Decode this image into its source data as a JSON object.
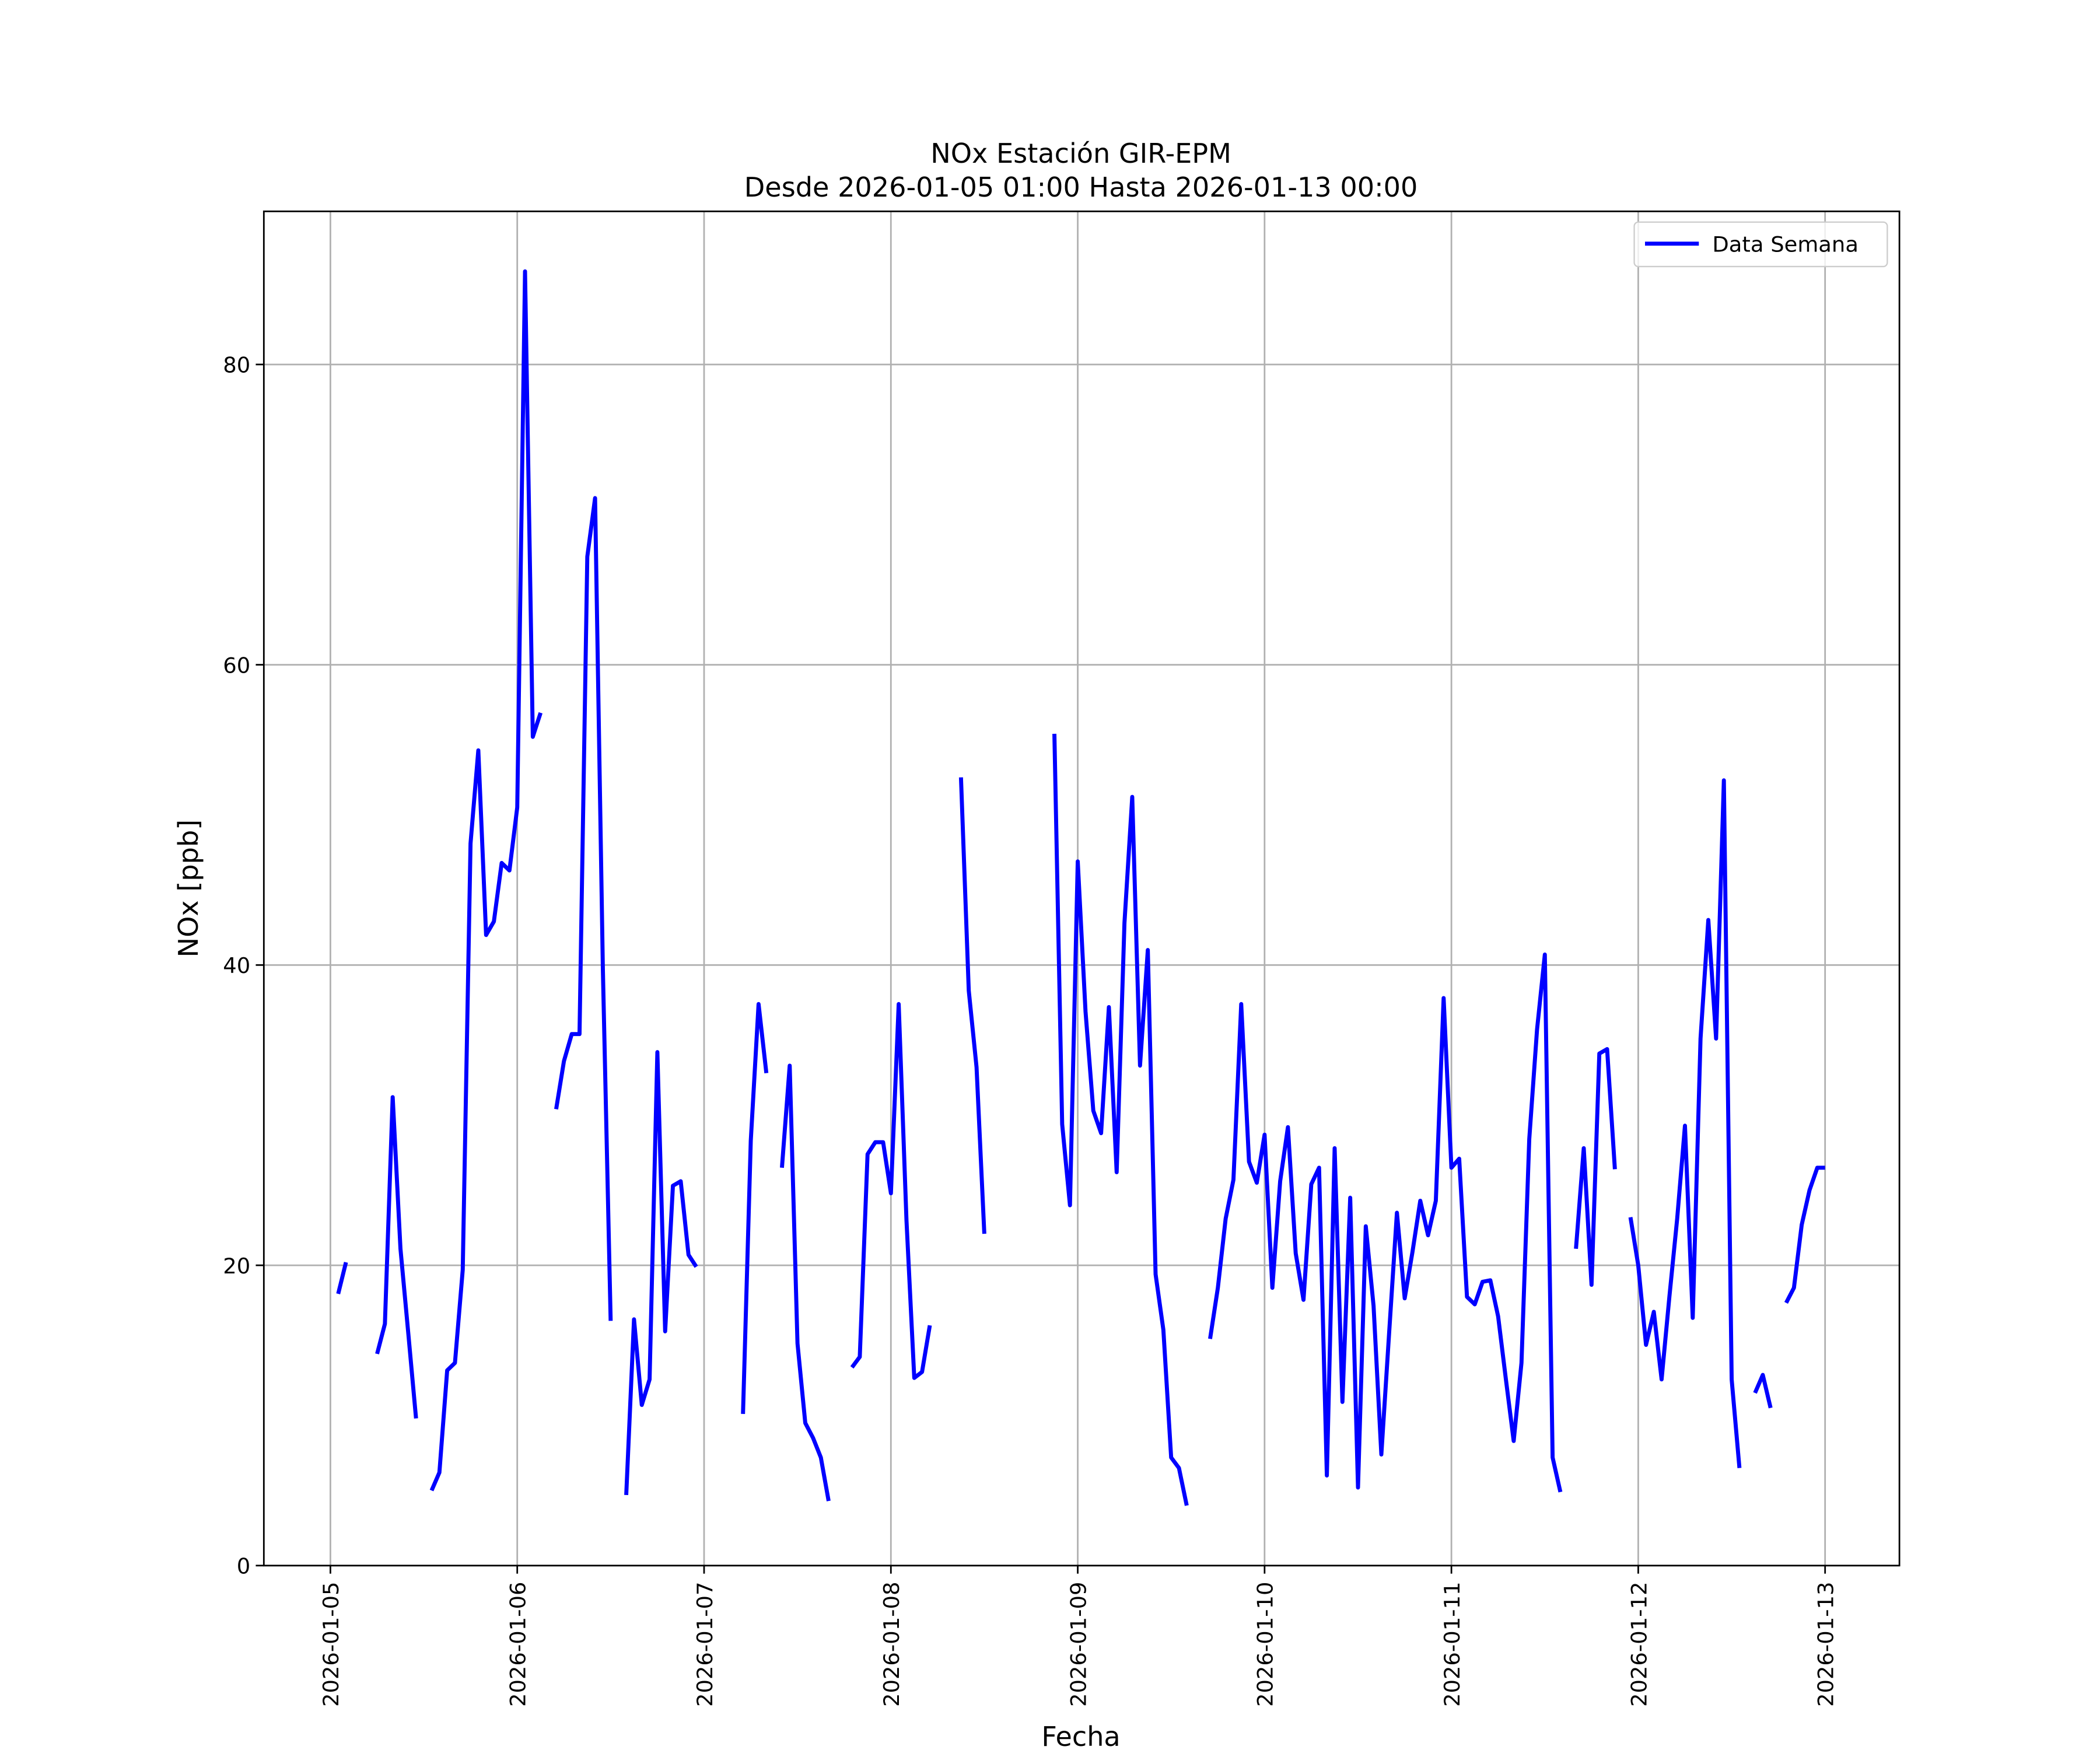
{
  "chart_data": {
    "type": "line",
    "title": "NOx Estación GIR-EPM",
    "subtitle": "Desde 2026-01-05 01:00 Hasta 2026-01-13 00:00",
    "x_label": "Fecha",
    "y_label": "NOx [ppb]",
    "legend": "upper right",
    "grid": true,
    "xlim": [
      "2026-01-04 15:27",
      "2026-01-13 09:33"
    ],
    "ylim": [
      0,
      90.2
    ],
    "yticks": [
      0,
      20,
      40,
      60,
      80
    ],
    "xticks": [
      "2026-01-05",
      "2026-01-06",
      "2026-01-07",
      "2026-01-08",
      "2026-01-09",
      "2026-01-10",
      "2026-01-11",
      "2026-01-12",
      "2026-01-13"
    ],
    "x": [
      "2026-01-05 01:00",
      "2026-01-05 02:00",
      "2026-01-05 03:00",
      "2026-01-05 04:00",
      "2026-01-05 05:00",
      "2026-01-05 06:00",
      "2026-01-05 07:00",
      "2026-01-05 08:00",
      "2026-01-05 09:00",
      "2026-01-05 10:00",
      "2026-01-05 11:00",
      "2026-01-05 12:00",
      "2026-01-05 13:00",
      "2026-01-05 14:00",
      "2026-01-05 15:00",
      "2026-01-05 16:00",
      "2026-01-05 17:00",
      "2026-01-05 18:00",
      "2026-01-05 19:00",
      "2026-01-05 20:00",
      "2026-01-05 21:00",
      "2026-01-05 22:00",
      "2026-01-05 23:00",
      "2026-01-06 00:00",
      "2026-01-06 01:00",
      "2026-01-06 02:00",
      "2026-01-06 03:00",
      "2026-01-06 04:00",
      "2026-01-06 05:00",
      "2026-01-06 06:00",
      "2026-01-06 07:00",
      "2026-01-06 08:00",
      "2026-01-06 09:00",
      "2026-01-06 10:00",
      "2026-01-06 11:00",
      "2026-01-06 12:00",
      "2026-01-06 13:00",
      "2026-01-06 14:00",
      "2026-01-06 15:00",
      "2026-01-06 16:00",
      "2026-01-06 17:00",
      "2026-01-06 18:00",
      "2026-01-06 19:00",
      "2026-01-06 20:00",
      "2026-01-06 21:00",
      "2026-01-06 22:00",
      "2026-01-06 23:00",
      "2026-01-07 00:00",
      "2026-01-07 01:00",
      "2026-01-07 02:00",
      "2026-01-07 03:00",
      "2026-01-07 04:00",
      "2026-01-07 05:00",
      "2026-01-07 06:00",
      "2026-01-07 07:00",
      "2026-01-07 08:00",
      "2026-01-07 09:00",
      "2026-01-07 10:00",
      "2026-01-07 11:00",
      "2026-01-07 12:00",
      "2026-01-07 13:00",
      "2026-01-07 14:00",
      "2026-01-07 15:00",
      "2026-01-07 16:00",
      "2026-01-07 17:00",
      "2026-01-07 18:00",
      "2026-01-07 19:00",
      "2026-01-07 20:00",
      "2026-01-07 21:00",
      "2026-01-07 22:00",
      "2026-01-07 23:00",
      "2026-01-08 00:00",
      "2026-01-08 01:00",
      "2026-01-08 02:00",
      "2026-01-08 03:00",
      "2026-01-08 04:00",
      "2026-01-08 05:00",
      "2026-01-08 06:00",
      "2026-01-08 07:00",
      "2026-01-08 08:00",
      "2026-01-08 09:00",
      "2026-01-08 10:00",
      "2026-01-08 11:00",
      "2026-01-08 12:00",
      "2026-01-08 13:00",
      "2026-01-08 14:00",
      "2026-01-08 15:00",
      "2026-01-08 16:00",
      "2026-01-08 17:00",
      "2026-01-08 18:00",
      "2026-01-08 19:00",
      "2026-01-08 20:00",
      "2026-01-08 21:00",
      "2026-01-08 22:00",
      "2026-01-08 23:00",
      "2026-01-09 00:00",
      "2026-01-09 01:00",
      "2026-01-09 02:00",
      "2026-01-09 03:00",
      "2026-01-09 04:00",
      "2026-01-09 05:00",
      "2026-01-09 06:00",
      "2026-01-09 07:00",
      "2026-01-09 08:00",
      "2026-01-09 09:00",
      "2026-01-09 10:00",
      "2026-01-09 11:00",
      "2026-01-09 12:00",
      "2026-01-09 13:00",
      "2026-01-09 14:00",
      "2026-01-09 15:00",
      "2026-01-09 16:00",
      "2026-01-09 17:00",
      "2026-01-09 18:00",
      "2026-01-09 19:00",
      "2026-01-09 20:00",
      "2026-01-09 21:00",
      "2026-01-09 22:00",
      "2026-01-09 23:00",
      "2026-01-10 00:00",
      "2026-01-10 01:00",
      "2026-01-10 02:00",
      "2026-01-10 03:00",
      "2026-01-10 04:00",
      "2026-01-10 05:00",
      "2026-01-10 06:00",
      "2026-01-10 07:00",
      "2026-01-10 08:00",
      "2026-01-10 09:00",
      "2026-01-10 10:00",
      "2026-01-10 11:00",
      "2026-01-10 12:00",
      "2026-01-10 13:00",
      "2026-01-10 14:00",
      "2026-01-10 15:00",
      "2026-01-10 16:00",
      "2026-01-10 17:00",
      "2026-01-10 18:00",
      "2026-01-10 19:00",
      "2026-01-10 20:00",
      "2026-01-10 21:00",
      "2026-01-10 22:00",
      "2026-01-10 23:00",
      "2026-01-11 00:00",
      "2026-01-11 01:00",
      "2026-01-11 02:00",
      "2026-01-11 03:00",
      "2026-01-11 04:00",
      "2026-01-11 05:00",
      "2026-01-11 06:00",
      "2026-01-11 07:00",
      "2026-01-11 08:00",
      "2026-01-11 09:00",
      "2026-01-11 10:00",
      "2026-01-11 11:00",
      "2026-01-11 12:00",
      "2026-01-11 13:00",
      "2026-01-11 14:00",
      "2026-01-11 15:00",
      "2026-01-11 16:00",
      "2026-01-11 17:00",
      "2026-01-11 18:00",
      "2026-01-11 19:00",
      "2026-01-11 20:00",
      "2026-01-11 21:00",
      "2026-01-11 22:00",
      "2026-01-11 23:00",
      "2026-01-12 00:00",
      "2026-01-12 01:00",
      "2026-01-12 02:00",
      "2026-01-12 03:00",
      "2026-01-12 04:00",
      "2026-01-12 05:00",
      "2026-01-12 06:00",
      "2026-01-12 07:00",
      "2026-01-12 08:00",
      "2026-01-12 09:00",
      "2026-01-12 10:00",
      "2026-01-12 11:00",
      "2026-01-12 12:00",
      "2026-01-12 13:00",
      "2026-01-12 14:00",
      "2026-01-12 15:00",
      "2026-01-12 16:00",
      "2026-01-12 17:00",
      "2026-01-12 18:00",
      "2026-01-12 19:00",
      "2026-01-12 20:00",
      "2026-01-12 21:00",
      "2026-01-12 22:00",
      "2026-01-12 23:00",
      "2026-01-13 00:00"
    ],
    "series": [
      {
        "name": "Data Semana",
        "color": "#0000ff",
        "values": [
          18.1,
          20.2,
          null,
          null,
          null,
          14.1,
          16.1,
          31.2,
          21.1,
          15.5,
          9.8,
          null,
          5.0,
          6.2,
          13.0,
          13.5,
          19.7,
          48.1,
          54.3,
          42.0,
          42.9,
          46.8,
          46.3,
          50.5,
          86.2,
          55.2,
          56.8,
          null,
          30.4,
          33.6,
          35.4,
          35.4,
          67.2,
          71.1,
          39.7,
          16.3,
          null,
          4.7,
          16.4,
          10.7,
          12.4,
          34.2,
          15.6,
          25.3,
          25.6,
          20.7,
          19.9,
          null,
          null,
          null,
          null,
          null,
          10.1,
          28.3,
          37.4,
          32.8,
          null,
          26.5,
          33.3,
          14.8,
          9.5,
          8.5,
          7.2,
          4.3,
          null,
          null,
          13.2,
          13.9,
          27.4,
          28.2,
          28.2,
          24.8,
          37.4,
          23.0,
          12.5,
          12.9,
          16.0,
          null,
          null,
          null,
          52.5,
          38.3,
          33.2,
          22.1,
          null,
          null,
          null,
          null,
          null,
          null,
          null,
          null,
          55.4,
          29.4,
          24.0,
          46.9,
          36.9,
          30.3,
          28.8,
          37.2,
          26.2,
          42.8,
          51.2,
          33.3,
          41.0,
          19.4,
          15.7,
          7.2,
          6.5,
          4.0,
          null,
          null,
          15.1,
          18.5,
          23.1,
          25.7,
          37.4,
          26.9,
          25.5,
          28.7,
          18.5,
          25.6,
          29.2,
          20.8,
          17.7,
          25.4,
          26.5,
          6.0,
          27.8,
          10.9,
          24.5,
          5.2,
          22.6,
          17.3,
          7.4,
          15.5,
          23.5,
          17.8,
          20.9,
          24.3,
          22.0,
          24.3,
          37.8,
          26.5,
          27.1,
          17.9,
          17.4,
          18.9,
          19.0,
          16.6,
          12.4,
          8.3,
          13.5,
          28.4,
          35.7,
          40.7,
          7.2,
          4.9,
          null,
          21.1,
          27.8,
          18.7,
          34.1,
          34.4,
          26.4,
          null,
          23.2,
          20.0,
          14.7,
          16.9,
          12.4,
          17.9,
          23.1,
          29.3,
          16.5,
          35.1,
          43.0,
          35.1,
          52.3,
          12.4,
          6.5,
          null,
          11.5,
          12.7,
          10.5,
          null,
          17.5,
          18.5,
          22.7,
          25.0,
          26.5,
          26.5
        ]
      }
    ]
  }
}
